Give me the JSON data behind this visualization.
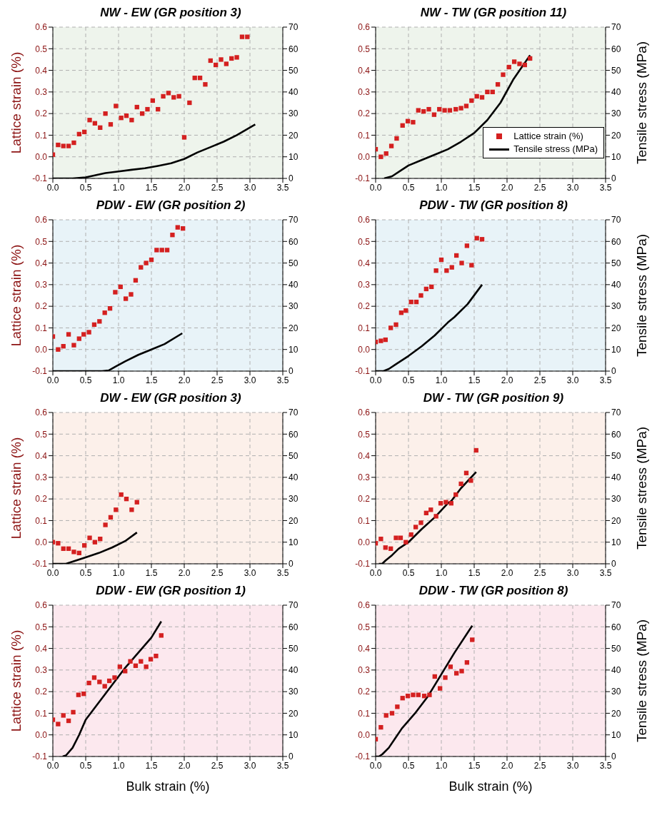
{
  "chart_data": [
    {
      "type": "scatter",
      "title": "NW - EW (GR position 3)",
      "ylabel": "Lattice strain (%)",
      "marker": "square",
      "grid": true,
      "xlim": [
        0,
        3.5
      ],
      "xticks": [
        {
          "value": 0,
          "label": "0.0"
        },
        {
          "value": 0.5,
          "label": "0.5"
        },
        {
          "value": 1,
          "label": "1.0"
        },
        {
          "value": 1.5,
          "label": "1.5"
        },
        {
          "value": 2,
          "label": "2.0"
        },
        {
          "value": 2.5,
          "label": "2.5"
        },
        {
          "value": 3,
          "label": "3.0"
        },
        {
          "value": 3.5,
          "label": "3.5"
        }
      ],
      "ylim": [
        -0.1,
        0.6
      ],
      "yticks": [
        {
          "value": -0.1,
          "label": "-0.1"
        },
        {
          "value": 0,
          "label": "0.0"
        },
        {
          "value": 0.1,
          "label": "0.1"
        },
        {
          "value": 0.2,
          "label": "0.2"
        },
        {
          "value": 0.3,
          "label": "0.3"
        },
        {
          "value": 0.4,
          "label": "0.4"
        },
        {
          "value": 0.5,
          "label": "0.5"
        },
        {
          "value": 0.6,
          "label": "0.6"
        }
      ],
      "y2lim": [
        0,
        70
      ],
      "y2ticks": [
        0,
        10,
        20,
        30,
        40,
        50,
        60,
        70
      ],
      "series": [
        {
          "type": "scatter",
          "color": "#d42020",
          "x": [
            0,
            0.08,
            0.16,
            0.24,
            0.32,
            0.4,
            0.48,
            0.56,
            0.64,
            0.72,
            0.8,
            0.88,
            0.96,
            1.04,
            1.12,
            1.2,
            1.28,
            1.36,
            1.44,
            1.52,
            1.6,
            1.68,
            1.76,
            1.84,
            1.92,
            2.0,
            2.08,
            2.16,
            2.24,
            2.32,
            2.4,
            2.48,
            2.56,
            2.64,
            2.72,
            2.8,
            2.88,
            2.96
          ],
          "values": [
            0.01,
            0.055,
            0.05,
            0.05,
            0.065,
            0.105,
            0.115,
            0.17,
            0.155,
            0.135,
            0.2,
            0.15,
            0.235,
            0.18,
            0.19,
            0.17,
            0.23,
            0.2,
            0.22,
            0.26,
            0.22,
            0.28,
            0.295,
            0.275,
            0.28,
            0.09,
            0.25,
            0.365,
            0.365,
            0.335,
            0.445,
            0.425,
            0.45,
            0.43,
            0.455,
            0.46,
            0.555,
            0.555
          ]
        },
        {
          "type": "line",
          "axis": "y2",
          "marker": "none",
          "color": "#000000",
          "x": [
            0,
            0.3,
            0.5,
            0.65,
            0.8,
            1.0,
            1.2,
            1.4,
            1.6,
            1.8,
            2.0,
            2.2,
            2.4,
            2.6,
            2.8,
            3.08
          ],
          "values": [
            0,
            0,
            0.5,
            1.5,
            2.5,
            3.2,
            4,
            4.7,
            5.8,
            7,
            9,
            12,
            14.5,
            17,
            20,
            25
          ]
        }
      ]
    },
    {
      "type": "scatter",
      "title": "NW - TW (GR position 11)",
      "y2label": "Tensile stress (MPa)",
      "marker": "square",
      "grid": true,
      "legend": "bottom right",
      "xlim": [
        0,
        3.5
      ],
      "xticks": [
        {
          "value": 0,
          "label": "0.0"
        },
        {
          "value": 0.5,
          "label": "0.5"
        },
        {
          "value": 1,
          "label": "1.0"
        },
        {
          "value": 1.5,
          "label": "1.5"
        },
        {
          "value": 2,
          "label": "2.0"
        },
        {
          "value": 2.5,
          "label": "2.5"
        },
        {
          "value": 3,
          "label": "3.0"
        },
        {
          "value": 3.5,
          "label": "3.5"
        }
      ],
      "ylim": [
        -0.1,
        0.6
      ],
      "yticks": [
        {
          "value": -0.1,
          "label": "-0.1"
        },
        {
          "value": 0,
          "label": "0.0"
        },
        {
          "value": 0.1,
          "label": "0.1"
        },
        {
          "value": 0.2,
          "label": "0.2"
        },
        {
          "value": 0.3,
          "label": "0.3"
        },
        {
          "value": 0.4,
          "label": "0.4"
        },
        {
          "value": 0.5,
          "label": "0.5"
        },
        {
          "value": 0.6,
          "label": "0.6"
        }
      ],
      "y2lim": [
        0,
        70
      ],
      "y2ticks": [
        0,
        10,
        20,
        30,
        40,
        50,
        60,
        70
      ],
      "series": [
        {
          "type": "scatter",
          "name": "Lattice strain (%)",
          "color": "#d42020",
          "x": [
            0,
            0.08,
            0.16,
            0.24,
            0.32,
            0.41,
            0.49,
            0.57,
            0.65,
            0.73,
            0.81,
            0.89,
            0.97,
            1.05,
            1.13,
            1.22,
            1.3,
            1.38,
            1.46,
            1.54,
            1.62,
            1.7,
            1.78,
            1.86,
            1.94,
            2.03,
            2.11,
            2.19,
            2.27,
            2.35
          ],
          "values": [
            0.035,
            0.0,
            0.015,
            0.05,
            0.085,
            0.145,
            0.165,
            0.16,
            0.215,
            0.21,
            0.22,
            0.195,
            0.22,
            0.215,
            0.215,
            0.22,
            0.225,
            0.235,
            0.26,
            0.28,
            0.275,
            0.3,
            0.3,
            0.335,
            0.38,
            0.415,
            0.44,
            0.43,
            0.425,
            0.455
          ]
        },
        {
          "type": "line",
          "axis": "y2",
          "marker": "none",
          "name": "Tensile stress (MPa)",
          "color": "#000000",
          "x": [
            0.13,
            0.25,
            0.4,
            0.5,
            0.7,
            0.9,
            1.1,
            1.3,
            1.5,
            1.7,
            1.9,
            2.1,
            2.35
          ],
          "values": [
            0,
            1,
            4,
            6,
            8.5,
            11,
            13.5,
            17,
            21,
            27,
            35,
            46,
            57
          ]
        }
      ]
    },
    {
      "type": "scatter",
      "title": "PDW - EW (GR position 2)",
      "ylabel": "Lattice strain (%)",
      "marker": "square",
      "grid": true,
      "xlim": [
        0,
        3.5
      ],
      "xticks": [
        {
          "value": 0,
          "label": "0.0"
        },
        {
          "value": 0.5,
          "label": "0.5"
        },
        {
          "value": 1,
          "label": "1.0"
        },
        {
          "value": 1.5,
          "label": "1.5"
        },
        {
          "value": 2,
          "label": "2.0"
        },
        {
          "value": 2.5,
          "label": "2.5"
        },
        {
          "value": 3,
          "label": "3.0"
        },
        {
          "value": 3.5,
          "label": "3.5"
        }
      ],
      "ylim": [
        -0.1,
        0.6
      ],
      "yticks": [
        {
          "value": -0.1,
          "label": "-0.1"
        },
        {
          "value": 0,
          "label": "0.0"
        },
        {
          "value": 0.1,
          "label": "0.1"
        },
        {
          "value": 0.2,
          "label": "0.2"
        },
        {
          "value": 0.3,
          "label": "0.3"
        },
        {
          "value": 0.4,
          "label": "0.4"
        },
        {
          "value": 0.5,
          "label": "0.5"
        },
        {
          "value": 0.6,
          "label": "0.6"
        }
      ],
      "y2lim": [
        0,
        70
      ],
      "y2ticks": [
        0,
        10,
        20,
        30,
        40,
        50,
        60,
        70
      ],
      "series": [
        {
          "type": "scatter",
          "color": "#d42020",
          "x": [
            0,
            0.08,
            0.16,
            0.24,
            0.32,
            0.4,
            0.47,
            0.55,
            0.63,
            0.71,
            0.79,
            0.87,
            0.95,
            1.03,
            1.11,
            1.19,
            1.26,
            1.34,
            1.42,
            1.5,
            1.58,
            1.66,
            1.74,
            1.82,
            1.9,
            1.98
          ],
          "values": [
            0.06,
            0.0,
            0.015,
            0.07,
            0.02,
            0.05,
            0.07,
            0.08,
            0.115,
            0.13,
            0.17,
            0.19,
            0.265,
            0.29,
            0.235,
            0.255,
            0.32,
            0.38,
            0.4,
            0.415,
            0.46,
            0.46,
            0.46,
            0.53,
            0.565,
            0.56
          ]
        },
        {
          "type": "line",
          "axis": "y2",
          "marker": "none",
          "color": "#000000",
          "x": [
            0,
            0.75,
            0.85,
            0.95,
            1.1,
            1.3,
            1.5,
            1.7,
            1.97
          ],
          "values": [
            0,
            0,
            0.3,
            2,
            4.5,
            7.5,
            10,
            12.5,
            17.5
          ]
        }
      ]
    },
    {
      "type": "scatter",
      "title": "PDW - TW (GR position 8)",
      "y2label": "Tensile stress (MPa)",
      "marker": "square",
      "grid": true,
      "xlim": [
        0,
        3.5
      ],
      "xticks": [
        {
          "value": 0,
          "label": "0.0"
        },
        {
          "value": 0.5,
          "label": "0.5"
        },
        {
          "value": 1,
          "label": "1.0"
        },
        {
          "value": 1.5,
          "label": "1.5"
        },
        {
          "value": 2,
          "label": "2.0"
        },
        {
          "value": 2.5,
          "label": "2.5"
        },
        {
          "value": 3,
          "label": "3.0"
        },
        {
          "value": 3.5,
          "label": "3.5"
        }
      ],
      "ylim": [
        -0.1,
        0.6
      ],
      "yticks": [
        {
          "value": -0.1,
          "label": "-0.1"
        },
        {
          "value": 0,
          "label": "0.0"
        },
        {
          "value": 0.1,
          "label": "0.1"
        },
        {
          "value": 0.2,
          "label": "0.2"
        },
        {
          "value": 0.3,
          "label": "0.3"
        },
        {
          "value": 0.4,
          "label": "0.4"
        },
        {
          "value": 0.5,
          "label": "0.5"
        },
        {
          "value": 0.6,
          "label": "0.6"
        }
      ],
      "y2lim": [
        0,
        70
      ],
      "y2ticks": [
        0,
        10,
        20,
        30,
        40,
        50,
        60,
        70
      ],
      "series": [
        {
          "type": "scatter",
          "color": "#d42020",
          "x": [
            0,
            0.08,
            0.15,
            0.23,
            0.31,
            0.39,
            0.46,
            0.54,
            0.62,
            0.69,
            0.77,
            0.85,
            0.92,
            1.0,
            1.08,
            1.16,
            1.23,
            1.31,
            1.39,
            1.46,
            1.54,
            1.62
          ],
          "values": [
            0.035,
            0.04,
            0.045,
            0.1,
            0.115,
            0.17,
            0.18,
            0.22,
            0.22,
            0.25,
            0.28,
            0.29,
            0.365,
            0.415,
            0.365,
            0.38,
            0.435,
            0.4,
            0.48,
            0.39,
            0.515,
            0.51
          ]
        },
        {
          "type": "line",
          "axis": "y2",
          "marker": "none",
          "color": "#000000",
          "x": [
            0,
            0.12,
            0.2,
            0.3,
            0.5,
            0.7,
            0.9,
            1.05,
            1.1,
            1.2,
            1.4,
            1.62
          ],
          "values": [
            0,
            0,
            1,
            3,
            7,
            11.5,
            16.5,
            21,
            22.5,
            25,
            31,
            40
          ]
        }
      ]
    },
    {
      "type": "scatter",
      "title": "DW - EW (GR position 3)",
      "ylabel": "Lattice strain (%)",
      "marker": "square",
      "grid": true,
      "xlim": [
        0,
        3.5
      ],
      "xticks": [
        {
          "value": 0,
          "label": "0.0"
        },
        {
          "value": 0.5,
          "label": "0.5"
        },
        {
          "value": 1,
          "label": "1.0"
        },
        {
          "value": 1.5,
          "label": "1.5"
        },
        {
          "value": 2,
          "label": "2.0"
        },
        {
          "value": 2.5,
          "label": "2.5"
        },
        {
          "value": 3,
          "label": "3.0"
        },
        {
          "value": 3.5,
          "label": "3.5"
        }
      ],
      "ylim": [
        -0.1,
        0.6
      ],
      "yticks": [
        {
          "value": -0.1,
          "label": "-0.1"
        },
        {
          "value": 0,
          "label": "0.0"
        },
        {
          "value": 0.1,
          "label": "0.1"
        },
        {
          "value": 0.2,
          "label": "0.2"
        },
        {
          "value": 0.3,
          "label": "0.3"
        },
        {
          "value": 0.4,
          "label": "0.4"
        },
        {
          "value": 0.5,
          "label": "0.5"
        },
        {
          "value": 0.6,
          "label": "0.6"
        }
      ],
      "y2lim": [
        0,
        70
      ],
      "y2ticks": [
        0,
        10,
        20,
        30,
        40,
        50,
        60,
        70
      ],
      "series": [
        {
          "type": "scatter",
          "color": "#d42020",
          "x": [
            0,
            0.08,
            0.16,
            0.24,
            0.32,
            0.4,
            0.48,
            0.56,
            0.64,
            0.72,
            0.8,
            0.88,
            0.96,
            1.04,
            1.12,
            1.2,
            1.28
          ],
          "values": [
            0.0,
            -0.005,
            -0.03,
            -0.03,
            -0.045,
            -0.05,
            -0.015,
            0.02,
            0.0,
            0.015,
            0.08,
            0.115,
            0.15,
            0.22,
            0.2,
            0.15,
            0.185
          ]
        },
        {
          "type": "line",
          "axis": "y2",
          "marker": "none",
          "color": "#000000",
          "x": [
            0,
            0.2,
            0.3,
            0.5,
            0.7,
            0.9,
            1.1,
            1.28
          ],
          "values": [
            0,
            0,
            1,
            3,
            5,
            7.5,
            10.5,
            14.5
          ]
        }
      ]
    },
    {
      "type": "scatter",
      "title": "DW - TW (GR position 9)",
      "y2label": "Tensile stress (MPa)",
      "marker": "square",
      "grid": true,
      "xlim": [
        0,
        3.5
      ],
      "xticks": [
        {
          "value": 0,
          "label": "0.0"
        },
        {
          "value": 0.5,
          "label": "0.5"
        },
        {
          "value": 1,
          "label": "1.0"
        },
        {
          "value": 1.5,
          "label": "1.5"
        },
        {
          "value": 2,
          "label": "2.0"
        },
        {
          "value": 2.5,
          "label": "2.5"
        },
        {
          "value": 3,
          "label": "3.0"
        },
        {
          "value": 3.5,
          "label": "3.5"
        }
      ],
      "ylim": [
        -0.1,
        0.6
      ],
      "yticks": [
        {
          "value": -0.1,
          "label": "-0.1"
        },
        {
          "value": 0,
          "label": "0.0"
        },
        {
          "value": 0.1,
          "label": "0.1"
        },
        {
          "value": 0.2,
          "label": "0.2"
        },
        {
          "value": 0.3,
          "label": "0.3"
        },
        {
          "value": 0.4,
          "label": "0.4"
        },
        {
          "value": 0.5,
          "label": "0.5"
        },
        {
          "value": 0.6,
          "label": "0.6"
        }
      ],
      "y2lim": [
        0,
        70
      ],
      "y2ticks": [
        0,
        10,
        20,
        30,
        40,
        50,
        60,
        70
      ],
      "series": [
        {
          "type": "scatter",
          "color": "#d42020",
          "x": [
            0,
            0.08,
            0.15,
            0.23,
            0.31,
            0.38,
            0.46,
            0.54,
            0.61,
            0.69,
            0.77,
            0.84,
            0.92,
            0.99,
            1.07,
            1.15,
            1.22,
            1.3,
            1.38,
            1.45,
            1.53
          ],
          "values": [
            -0.005,
            0.015,
            -0.025,
            -0.03,
            0.02,
            0.02,
            0.0,
            0.035,
            0.07,
            0.09,
            0.135,
            0.15,
            0.12,
            0.18,
            0.185,
            0.18,
            0.22,
            0.27,
            0.32,
            0.285,
            0.425
          ]
        },
        {
          "type": "line",
          "axis": "y2",
          "marker": "none",
          "color": "#000000",
          "x": [
            0.05,
            0.1,
            0.15,
            0.25,
            0.35,
            0.5,
            0.7,
            0.9,
            1.1,
            1.15,
            1.3,
            1.53
          ],
          "values": [
            0,
            0,
            1.5,
            4,
            7,
            10,
            16,
            21.5,
            28,
            29,
            35,
            42.5
          ]
        }
      ]
    },
    {
      "type": "scatter",
      "title": "DDW - EW (GR position 1)",
      "ylabel": "Lattice strain (%)",
      "xlabel": "Bulk strain (%)",
      "marker": "square",
      "grid": true,
      "xlim": [
        0,
        3.5
      ],
      "xticks": [
        {
          "value": 0,
          "label": "0.0"
        },
        {
          "value": 0.5,
          "label": "0.5"
        },
        {
          "value": 1,
          "label": "1.0"
        },
        {
          "value": 1.5,
          "label": "1.5"
        },
        {
          "value": 2,
          "label": "2.0"
        },
        {
          "value": 2.5,
          "label": "2.5"
        },
        {
          "value": 3,
          "label": "3.0"
        },
        {
          "value": 3.5,
          "label": "3.5"
        }
      ],
      "ylim": [
        -0.1,
        0.6
      ],
      "yticks": [
        {
          "value": -0.1,
          "label": "-0.1"
        },
        {
          "value": 0,
          "label": "0.0"
        },
        {
          "value": 0.1,
          "label": "0.1"
        },
        {
          "value": 0.2,
          "label": "0.2"
        },
        {
          "value": 0.3,
          "label": "0.3"
        },
        {
          "value": 0.4,
          "label": "0.4"
        },
        {
          "value": 0.5,
          "label": "0.5"
        },
        {
          "value": 0.6,
          "label": "0.6"
        }
      ],
      "y2lim": [
        0,
        70
      ],
      "y2ticks": [
        0,
        10,
        20,
        30,
        40,
        50,
        60,
        70
      ],
      "series": [
        {
          "type": "scatter",
          "color": "#d42020",
          "x": [
            0,
            0.08,
            0.16,
            0.24,
            0.31,
            0.39,
            0.47,
            0.55,
            0.63,
            0.71,
            0.79,
            0.86,
            0.94,
            1.02,
            1.1,
            1.18,
            1.26,
            1.34,
            1.42,
            1.49,
            1.57,
            1.65
          ],
          "values": [
            0.07,
            0.05,
            0.09,
            0.065,
            0.105,
            0.185,
            0.19,
            0.24,
            0.265,
            0.245,
            0.225,
            0.25,
            0.265,
            0.315,
            0.295,
            0.34,
            0.32,
            0.34,
            0.315,
            0.35,
            0.365,
            0.46
          ]
        },
        {
          "type": "line",
          "axis": "y2",
          "marker": "none",
          "color": "#000000",
          "x": [
            0.15,
            0.2,
            0.3,
            0.4,
            0.5,
            0.7,
            0.9,
            1.1,
            1.3,
            1.5,
            1.65
          ],
          "values": [
            0,
            0.5,
            4,
            10,
            17,
            25,
            33,
            41,
            48,
            55,
            62.5
          ]
        }
      ]
    },
    {
      "type": "scatter",
      "title": "DDW - TW (GR position 8)",
      "y2label": "Tensile stress (MPa)",
      "xlabel": "Bulk strain (%)",
      "marker": "square",
      "grid": true,
      "xlim": [
        0,
        3.5
      ],
      "xticks": [
        {
          "value": 0,
          "label": "0.0"
        },
        {
          "value": 0.5,
          "label": "0.5"
        },
        {
          "value": 1,
          "label": "1.0"
        },
        {
          "value": 1.5,
          "label": "1.5"
        },
        {
          "value": 2,
          "label": "2.0"
        },
        {
          "value": 2.5,
          "label": "2.5"
        },
        {
          "value": 3,
          "label": "3.0"
        },
        {
          "value": 3.5,
          "label": "3.5"
        }
      ],
      "ylim": [
        -0.1,
        0.6
      ],
      "yticks": [
        {
          "value": -0.1,
          "label": "-0.1"
        },
        {
          "value": 0,
          "label": "0.0"
        },
        {
          "value": 0.1,
          "label": "0.1"
        },
        {
          "value": 0.2,
          "label": "0.2"
        },
        {
          "value": 0.3,
          "label": "0.3"
        },
        {
          "value": 0.4,
          "label": "0.4"
        },
        {
          "value": 0.5,
          "label": "0.5"
        },
        {
          "value": 0.6,
          "label": "0.6"
        }
      ],
      "y2lim": [
        0,
        70
      ],
      "y2ticks": [
        0,
        10,
        20,
        30,
        40,
        50,
        60,
        70
      ],
      "series": [
        {
          "type": "scatter",
          "color": "#d42020",
          "x": [
            0,
            0.08,
            0.16,
            0.25,
            0.33,
            0.41,
            0.49,
            0.57,
            0.65,
            0.74,
            0.82,
            0.9,
            0.98,
            1.06,
            1.14,
            1.23,
            1.31,
            1.39,
            1.47
          ],
          "values": [
            -0.02,
            0.035,
            0.09,
            0.1,
            0.13,
            0.17,
            0.18,
            0.185,
            0.185,
            0.18,
            0.185,
            0.27,
            0.215,
            0.265,
            0.315,
            0.285,
            0.295,
            0.335,
            0.44
          ]
        },
        {
          "type": "line",
          "axis": "y2",
          "marker": "none",
          "color": "#000000",
          "x": [
            0,
            0.05,
            0.1,
            0.2,
            0.3,
            0.4,
            0.6,
            0.8,
            1.0,
            1.2,
            1.47
          ],
          "values": [
            0,
            0,
            1,
            4,
            8.5,
            13,
            20,
            28,
            38,
            48,
            60.5
          ]
        }
      ]
    }
  ]
}
